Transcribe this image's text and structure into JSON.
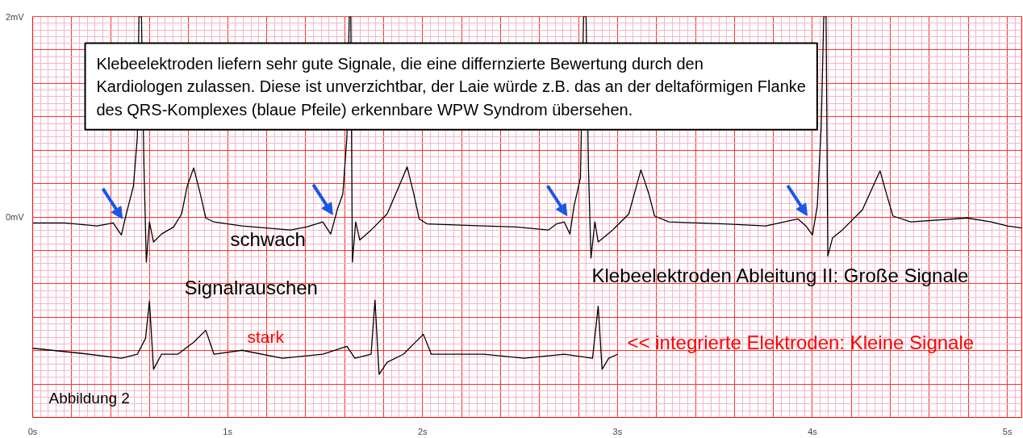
{
  "chart_data": {
    "type": "line",
    "xlim": [
      0,
      5.074
    ],
    "ylim": [
      -2,
      2
    ],
    "xticks": [
      {
        "value": 0,
        "label": "0s"
      },
      {
        "value": 1,
        "label": "1s"
      },
      {
        "value": 2,
        "label": "2s"
      },
      {
        "value": 3,
        "label": "3s"
      },
      {
        "value": 4,
        "label": "4s"
      },
      {
        "value": 5,
        "label": "5s"
      }
    ],
    "yticks": [
      {
        "value": 2,
        "label": "2mV"
      },
      {
        "value": 0,
        "label": "0mV"
      }
    ],
    "grid": true,
    "series": [
      {
        "color": "#000000",
        "x": [
          0,
          0.165,
          0.331,
          0.413,
          0.455,
          0.475,
          0.517,
          0.537,
          0.545,
          0.558,
          0.571,
          0.583,
          0.599,
          0.62,
          0.661,
          0.723,
          0.764,
          0.793,
          0.826,
          0.86,
          0.888,
          0.93,
          1.074,
          1.322,
          1.405,
          1.488,
          1.529,
          1.562,
          1.591,
          1.612,
          1.624,
          1.632,
          1.64,
          1.657,
          1.678,
          1.736,
          1.818,
          1.88,
          1.921,
          1.955,
          1.983,
          2.025,
          2.314,
          2.479,
          2.645,
          2.686,
          2.727,
          2.756,
          2.777,
          2.81,
          2.826,
          2.839,
          2.851,
          2.864,
          2.884,
          2.901,
          2.975,
          3.058,
          3.12,
          3.161,
          3.19,
          3.264,
          3.554,
          3.76,
          3.926,
          3.967,
          4.0,
          4.025,
          4.045,
          4.058,
          4.07,
          4.079,
          4.103,
          4.153,
          4.256,
          4.347,
          4.38,
          4.413,
          4.504,
          4.793,
          4.917,
          5.0,
          5.074
        ],
        "values": [
          -0.06,
          -0.06,
          -0.09,
          -0.06,
          -0.18,
          -0.01,
          0.31,
          0.8,
          2.0,
          2.0,
          0.5,
          -0.45,
          -0.05,
          -0.25,
          -0.17,
          -0.1,
          0.03,
          0.31,
          0.49,
          0.23,
          -0.01,
          -0.05,
          -0.09,
          -0.13,
          -0.1,
          -0.05,
          -0.17,
          0.07,
          0.23,
          0.8,
          2.0,
          2.0,
          -0.45,
          -0.05,
          -0.23,
          -0.13,
          0.03,
          0.31,
          0.5,
          0.23,
          -0.02,
          -0.07,
          -0.09,
          -0.1,
          -0.13,
          -0.07,
          -0.05,
          -0.17,
          0.11,
          0.39,
          2.0,
          2.0,
          0.5,
          -0.41,
          -0.05,
          -0.25,
          -0.13,
          0.03,
          0.47,
          0.23,
          0.01,
          -0.05,
          -0.07,
          -0.09,
          -0.02,
          -0.09,
          -0.18,
          0.11,
          0.9,
          2.0,
          2.0,
          -0.39,
          -0.21,
          -0.13,
          0.07,
          0.46,
          0.23,
          0.01,
          -0.05,
          -0.01,
          -0.05,
          -0.09,
          -0.11
        ]
      },
      {
        "color": "#000000",
        "x": [
          0,
          0.248,
          0.455,
          0.537,
          0.579,
          0.599,
          0.62,
          0.661,
          0.744,
          0.826,
          0.888,
          0.93,
          1.074,
          1.281,
          1.488,
          1.612,
          1.653,
          1.736,
          1.756,
          1.777,
          1.818,
          1.901,
          2.004,
          2.045,
          2.314,
          2.521,
          2.727,
          2.872,
          2.901,
          2.921,
          2.955,
          3.0
        ],
        "values": [
          -1.31,
          -1.36,
          -1.41,
          -1.37,
          -1.21,
          -0.84,
          -1.52,
          -1.37,
          -1.37,
          -1.25,
          -1.13,
          -1.37,
          -1.33,
          -1.41,
          -1.37,
          -1.29,
          -1.41,
          -1.37,
          -0.83,
          -1.57,
          -1.45,
          -1.37,
          -1.17,
          -1.37,
          -1.37,
          -1.41,
          -1.37,
          -1.41,
          -0.89,
          -1.52,
          -1.41,
          -1.37
        ]
      }
    ],
    "annotations": [
      "Klebeelektroden liefern sehr gute Signale, die eine differnzierte Bewertung durch den\nKardiologen zulassen. Diese ist unverzichtbar, der Laie würde z.B. das an der deltaförmigen Flanke\ndes QRS-Komplexes (blaue Pfeile) erkennbare WPW Syndrom übersehen.",
      "schwach",
      "Signalrauschen",
      "stark",
      "Klebeelektroden Ableitung II: Große Signale",
      "<< integrierte Elektroden: Kleine Signale",
      "Abbildung 2"
    ]
  }
}
